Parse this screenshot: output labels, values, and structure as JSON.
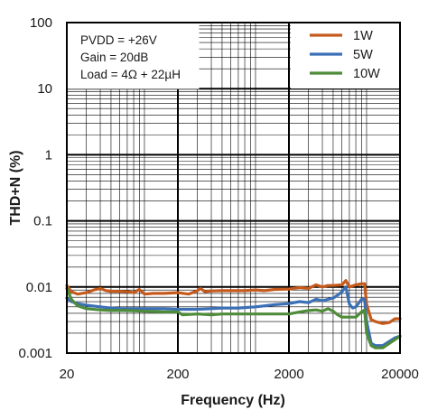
{
  "chart_data": {
    "type": "line",
    "title": "",
    "xlabel": "Frequency (Hz)",
    "ylabel": "THD+N (%)",
    "x_scale": "log",
    "y_scale": "log",
    "xlim": [
      20,
      20000
    ],
    "ylim": [
      0.001,
      100
    ],
    "x_tick_labels": [
      "20",
      "200",
      "2000",
      "20000"
    ],
    "y_tick_labels": [
      "100",
      "10",
      "1",
      "0.1",
      "0.01",
      "0.001"
    ],
    "grid": true,
    "legend_position": "top-right",
    "annotation_lines": [
      "PVDD = +26V",
      "Gain = 20dB",
      "Load = 4Ω + 22µH"
    ],
    "series": [
      {
        "name": "1W",
        "color": "#c55a1c",
        "points": [
          [
            20,
            0.0105
          ],
          [
            22,
            0.0085
          ],
          [
            25,
            0.0078
          ],
          [
            30,
            0.0082
          ],
          [
            35,
            0.009
          ],
          [
            40,
            0.0095
          ],
          [
            45,
            0.0088
          ],
          [
            50,
            0.0086
          ],
          [
            60,
            0.0086
          ],
          [
            70,
            0.0085
          ],
          [
            80,
            0.0082
          ],
          [
            90,
            0.0092
          ],
          [
            100,
            0.0078
          ],
          [
            120,
            0.008
          ],
          [
            150,
            0.008
          ],
          [
            200,
            0.0082
          ],
          [
            250,
            0.0078
          ],
          [
            300,
            0.0088
          ],
          [
            320,
            0.0095
          ],
          [
            350,
            0.0085
          ],
          [
            400,
            0.0087
          ],
          [
            500,
            0.0088
          ],
          [
            600,
            0.0088
          ],
          [
            700,
            0.0088
          ],
          [
            800,
            0.0088
          ],
          [
            1000,
            0.009
          ],
          [
            1200,
            0.0088
          ],
          [
            1500,
            0.0092
          ],
          [
            2000,
            0.0093
          ],
          [
            2500,
            0.0098
          ],
          [
            3000,
            0.0095
          ],
          [
            3500,
            0.0108
          ],
          [
            4000,
            0.01
          ],
          [
            4500,
            0.0105
          ],
          [
            5000,
            0.0105
          ],
          [
            6000,
            0.0108
          ],
          [
            6500,
            0.0125
          ],
          [
            7000,
            0.01
          ],
          [
            8000,
            0.0108
          ],
          [
            9000,
            0.0112
          ],
          [
            9600,
            0.0112
          ],
          [
            10000,
            0.0055
          ],
          [
            11000,
            0.0032
          ],
          [
            12000,
            0.003
          ],
          [
            14000,
            0.0028
          ],
          [
            16000,
            0.0029
          ],
          [
            18000,
            0.0033
          ],
          [
            20000,
            0.0033
          ]
        ]
      },
      {
        "name": "5W",
        "color": "#3b6fb6",
        "points": [
          [
            20,
            0.0068
          ],
          [
            22,
            0.006
          ],
          [
            25,
            0.0056
          ],
          [
            30,
            0.0053
          ],
          [
            40,
            0.005
          ],
          [
            50,
            0.0048
          ],
          [
            60,
            0.0047
          ],
          [
            80,
            0.0047
          ],
          [
            100,
            0.0047
          ],
          [
            150,
            0.0047
          ],
          [
            200,
            0.0046
          ],
          [
            250,
            0.0046
          ],
          [
            300,
            0.0046
          ],
          [
            400,
            0.0047
          ],
          [
            500,
            0.0048
          ],
          [
            700,
            0.0048
          ],
          [
            1000,
            0.005
          ],
          [
            1500,
            0.0054
          ],
          [
            2000,
            0.0056
          ],
          [
            2500,
            0.006
          ],
          [
            3000,
            0.0058
          ],
          [
            3500,
            0.0065
          ],
          [
            4000,
            0.0062
          ],
          [
            5000,
            0.0068
          ],
          [
            5500,
            0.0075
          ],
          [
            6000,
            0.0085
          ],
          [
            6500,
            0.01
          ],
          [
            7000,
            0.0055
          ],
          [
            7500,
            0.0048
          ],
          [
            8000,
            0.005
          ],
          [
            9000,
            0.0065
          ],
          [
            9600,
            0.0065
          ],
          [
            10000,
            0.003
          ],
          [
            11000,
            0.0014
          ],
          [
            12000,
            0.0013
          ],
          [
            14000,
            0.0013
          ],
          [
            16000,
            0.0015
          ],
          [
            18000,
            0.0017
          ],
          [
            20000,
            0.0018
          ]
        ]
      },
      {
        "name": "10W",
        "color": "#4e8c3a",
        "points": [
          [
            20,
            0.0095
          ],
          [
            22,
            0.0065
          ],
          [
            25,
            0.0052
          ],
          [
            30,
            0.0047
          ],
          [
            40,
            0.0045
          ],
          [
            50,
            0.0044
          ],
          [
            70,
            0.0044
          ],
          [
            100,
            0.0043
          ],
          [
            150,
            0.0042
          ],
          [
            200,
            0.0042
          ],
          [
            220,
            0.0038
          ],
          [
            300,
            0.0039
          ],
          [
            400,
            0.0038
          ],
          [
            500,
            0.0039
          ],
          [
            700,
            0.0039
          ],
          [
            1000,
            0.0039
          ],
          [
            1500,
            0.0039
          ],
          [
            2000,
            0.0039
          ],
          [
            2500,
            0.0042
          ],
          [
            3000,
            0.0044
          ],
          [
            3500,
            0.0045
          ],
          [
            4000,
            0.0043
          ],
          [
            4500,
            0.0047
          ],
          [
            5000,
            0.0043
          ],
          [
            5500,
            0.0038
          ],
          [
            6000,
            0.0035
          ],
          [
            7000,
            0.0035
          ],
          [
            8000,
            0.0035
          ],
          [
            9000,
            0.0042
          ],
          [
            9600,
            0.0045
          ],
          [
            10000,
            0.002
          ],
          [
            11000,
            0.0013
          ],
          [
            12000,
            0.0012
          ],
          [
            14000,
            0.0012
          ],
          [
            16000,
            0.0014
          ],
          [
            18000,
            0.0016
          ],
          [
            20000,
            0.0018
          ]
        ]
      }
    ]
  }
}
